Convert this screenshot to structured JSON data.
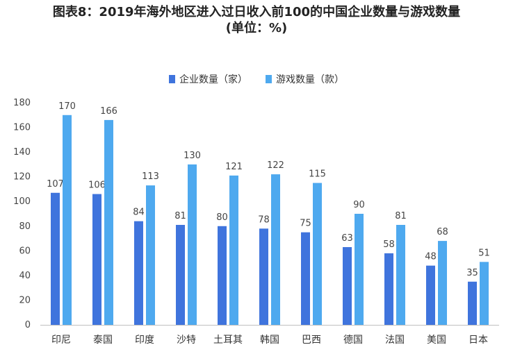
{
  "chart_data": {
    "type": "bar",
    "title": "图表8：2019年海外地区进入过日收入前100的中国企业数量与游戏数量",
    "subtitle": "(单位：%)",
    "categories": [
      "印尼",
      "泰国",
      "印度",
      "沙特",
      "土耳其",
      "韩国",
      "巴西",
      "德国",
      "法国",
      "美国",
      "日本"
    ],
    "series": [
      {
        "name": "企业数量（家）",
        "color": "#3f74dd",
        "values": [
          107,
          106,
          84,
          81,
          80,
          78,
          75,
          63,
          58,
          48,
          35
        ]
      },
      {
        "name": "游戏数量（款）",
        "color": "#4ea9ef",
        "values": [
          170,
          166,
          113,
          130,
          121,
          122,
          115,
          90,
          81,
          68,
          51
        ]
      }
    ],
    "ylim": [
      0,
      180
    ],
    "yticks": [
      0,
      20,
      40,
      60,
      80,
      100,
      120,
      140,
      160,
      180
    ],
    "grid": false,
    "legend": "top-center"
  }
}
